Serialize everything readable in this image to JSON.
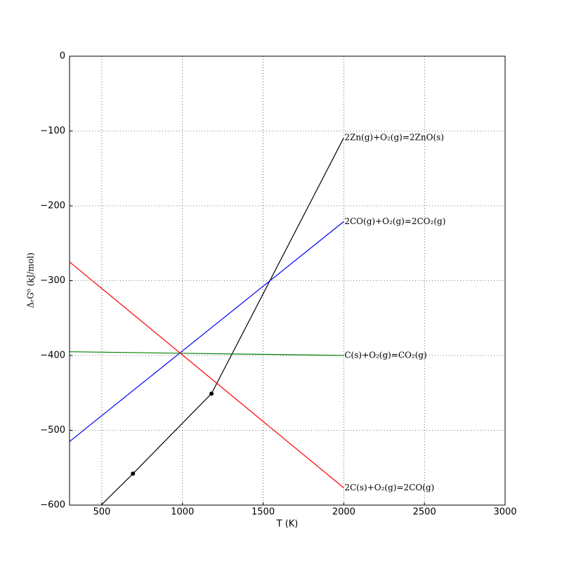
{
  "chart_data": {
    "type": "line",
    "x_label": "T (K)",
    "y_label": "ΔᵣG⁰ (kJ/mol)",
    "xlim": [
      300,
      3000
    ],
    "xticks": [
      500,
      1000,
      1500,
      2000,
      2500,
      3000
    ],
    "ylim": [
      -600,
      0
    ],
    "yticks": [
      {
        "value": -600,
        "label": "−600"
      },
      {
        "value": -500,
        "label": "−500"
      },
      {
        "value": -400,
        "label": "−400"
      },
      {
        "value": -300,
        "label": "−300"
      },
      {
        "value": -200,
        "label": "−200"
      },
      {
        "value": -100,
        "label": "−100"
      },
      0
    ],
    "grid": true,
    "series": [
      {
        "name": "2Zn(g)+O₂(g)=2ZnO(s)",
        "color": "#000000",
        "x": [
          496,
          693,
          1180,
          2000
        ],
        "values": [
          -600,
          -558,
          -451,
          -109
        ],
        "marker_indices": [
          1,
          2
        ]
      },
      {
        "name": "2CO(g)+O₂(g)=2CO₂(g)",
        "color": "#0000ff",
        "x": [
          300,
          2000
        ],
        "values": [
          -515,
          -221
        ]
      },
      {
        "name": "C(s)+O₂(g)=CO₂(g)",
        "color": "#008000",
        "x": [
          300,
          2000
        ],
        "values": [
          -395,
          -400
        ]
      },
      {
        "name": "2C(s)+O₂(g)=2CO(g)",
        "color": "#ff0000",
        "x": [
          300,
          2000
        ],
        "values": [
          -275,
          -577
        ]
      }
    ]
  }
}
